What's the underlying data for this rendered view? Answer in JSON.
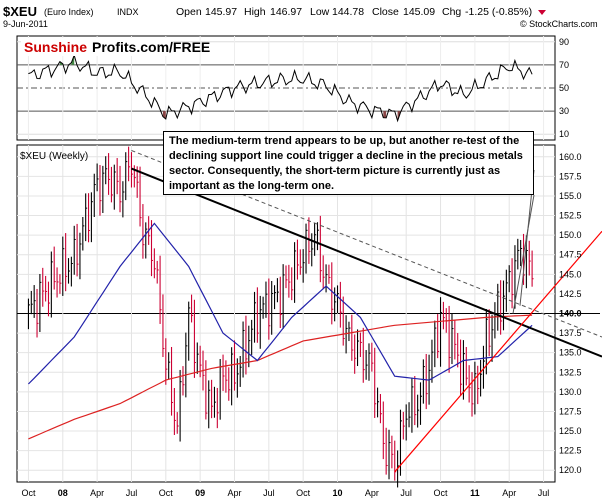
{
  "header": {
    "symbol": "$XEU",
    "name": "(Euro Index)",
    "exchange": "INDX",
    "date": "9-Jun-2011",
    "open_label": "Open",
    "open": "145.97",
    "high_label": "High",
    "high": "146.97",
    "low_label": "Low",
    "low": "144.78",
    "close_label": "Close",
    "close": "145.09",
    "chg_label": "Chg",
    "chg": "-1.25 (-0.85%)",
    "copyright": "© StockCharts.com"
  },
  "watermark": {
    "part1": "Sunshine",
    "part2": "Profits.com/FREE"
  },
  "price_label": "$XEU (Weekly)",
  "annotation": "The medium-term trend appears to be up, but another re-test of the declining support line could trigger a decline in the precious metals sector. Consequently, the short-term picture is currently just as important as the long-term one.",
  "colors": {
    "up_bar": "#000000",
    "down_bar": "#cc0033",
    "ma_short": "#2222aa",
    "ma_long": "#dd2222",
    "rsi_over": "#448844",
    "rsi_under": "#884444",
    "trendline": "#000000",
    "support": "#ff0000"
  },
  "chart_data": [
    {
      "type": "line",
      "name": "RSI",
      "y_ticks": [
        10,
        30,
        50,
        70,
        90
      ],
      "ylim": [
        5,
        95
      ],
      "reference_levels": [
        30,
        50,
        70
      ],
      "x": [
        "2007-10",
        "2007-12",
        "2008-02",
        "2008-04",
        "2008-06",
        "2008-08",
        "2008-10",
        "2008-12",
        "2009-02",
        "2009-04",
        "2009-06",
        "2009-08",
        "2009-10",
        "2009-12",
        "2010-02",
        "2010-04",
        "2010-06",
        "2010-08",
        "2010-10",
        "2010-12",
        "2011-02",
        "2011-04",
        "2011-06"
      ],
      "values": [
        60,
        66,
        72,
        63,
        64,
        46,
        27,
        34,
        42,
        50,
        54,
        57,
        58,
        52,
        38,
        31,
        27,
        40,
        54,
        44,
        56,
        69,
        61
      ]
    },
    {
      "type": "bar",
      "subtype": "ohlc",
      "title": "$XEU (Weekly)",
      "ylim": [
        118.5,
        161.5
      ],
      "y_ticks": [
        120.0,
        122.5,
        125.0,
        127.5,
        130.0,
        132.5,
        135.0,
        137.5,
        140.0,
        142.5,
        145.0,
        147.5,
        150.0,
        152.5,
        155.0,
        157.5,
        160.0
      ],
      "x_labels": [
        "Oct",
        "08",
        "Apr",
        "Jul",
        "Oct",
        "09",
        "Apr",
        "Jul",
        "Oct",
        "10",
        "Apr",
        "Jul",
        "Oct",
        "11",
        "Apr",
        "Jul"
      ],
      "last_value": 145.09,
      "trendline_level": 140.0,
      "anchors": [
        [
          "2007-10",
          140.0
        ],
        [
          "2007-12",
          144.0
        ],
        [
          "2008-02",
          147.0
        ],
        [
          "2008-04",
          156.5
        ],
        [
          "2008-05",
          157.5
        ],
        [
          "2008-06",
          155.5
        ],
        [
          "2008-07",
          159.5
        ],
        [
          "2008-08",
          150.5
        ],
        [
          "2008-09",
          147.0
        ],
        [
          "2008-10",
          133.5
        ],
        [
          "2008-11",
          125.5
        ],
        [
          "2008-12",
          140.0
        ],
        [
          "2009-01",
          132.5
        ],
        [
          "2009-02",
          127.5
        ],
        [
          "2009-03",
          132.0
        ],
        [
          "2009-04",
          132.0
        ],
        [
          "2009-06",
          140.0
        ],
        [
          "2009-08",
          142.5
        ],
        [
          "2009-10",
          147.5
        ],
        [
          "2009-11",
          150.0
        ],
        [
          "2009-12",
          144.0
        ],
        [
          "2010-01",
          141.0
        ],
        [
          "2010-02",
          136.5
        ],
        [
          "2010-03",
          135.0
        ],
        [
          "2010-04",
          133.0
        ],
        [
          "2010-05",
          123.5
        ],
        [
          "2010-06",
          120.5
        ],
        [
          "2010-07",
          127.5
        ],
        [
          "2010-08",
          128.5
        ],
        [
          "2010-09",
          133.0
        ],
        [
          "2010-10",
          139.5
        ],
        [
          "2010-11",
          136.5
        ],
        [
          "2010-12",
          132.5
        ],
        [
          "2011-01",
          129.5
        ],
        [
          "2011-02",
          136.5
        ],
        [
          "2011-03",
          140.5
        ],
        [
          "2011-04",
          144.0
        ],
        [
          "2011-05",
          148.0
        ],
        [
          "2011-06",
          145.1
        ]
      ],
      "ma_short_anchors": [
        [
          "2007-10",
          131.0
        ],
        [
          "2008-02",
          137.0
        ],
        [
          "2008-06",
          146.0
        ],
        [
          "2008-09",
          151.5
        ],
        [
          "2008-12",
          146.0
        ],
        [
          "2009-03",
          137.5
        ],
        [
          "2009-06",
          134.0
        ],
        [
          "2009-09",
          139.5
        ],
        [
          "2009-12",
          143.5
        ],
        [
          "2010-03",
          139.5
        ],
        [
          "2010-06",
          132.0
        ],
        [
          "2010-09",
          131.5
        ],
        [
          "2010-12",
          134.0
        ],
        [
          "2011-03",
          134.5
        ],
        [
          "2011-06",
          138.5
        ]
      ],
      "ma_long_anchors": [
        [
          "2007-10",
          124.0
        ],
        [
          "2008-02",
          126.5
        ],
        [
          "2008-06",
          128.5
        ],
        [
          "2008-10",
          131.5
        ],
        [
          "2009-02",
          133.0
        ],
        [
          "2009-06",
          134.0
        ],
        [
          "2009-10",
          136.5
        ],
        [
          "2010-02",
          137.5
        ],
        [
          "2010-06",
          138.5
        ],
        [
          "2010-10",
          139.0
        ],
        [
          "2011-02",
          139.5
        ],
        [
          "2011-06",
          139.8
        ]
      ]
    }
  ]
}
